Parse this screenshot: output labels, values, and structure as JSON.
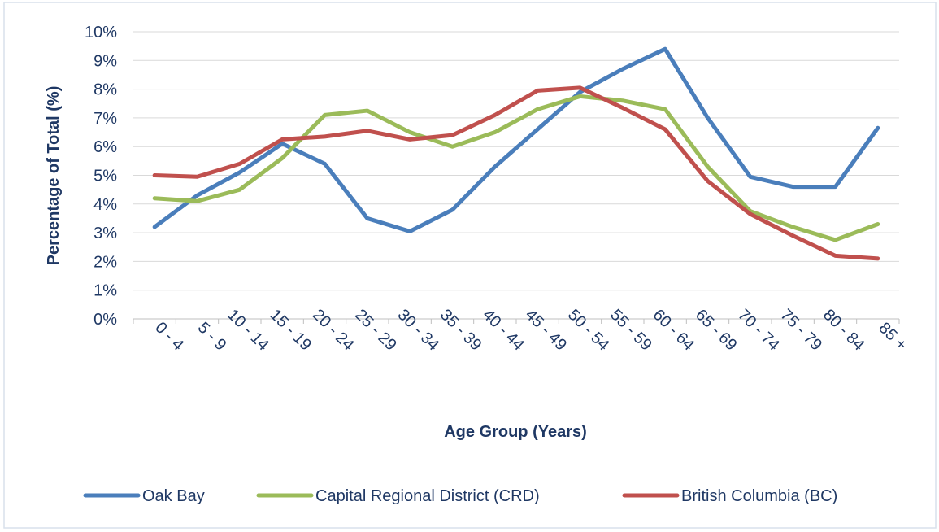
{
  "chart_data": {
    "type": "line",
    "x_label": "Age Group (Years)",
    "y_label": "Percentage of Total (%)",
    "categories": [
      "0 - 4",
      "5 - 9",
      "10 - 14",
      "15 - 19",
      "20 - 24",
      "25 - 29",
      "30 - 34",
      "35 - 39",
      "40 - 44",
      "45 - 49",
      "50 - 54",
      "55 - 59",
      "60 - 64",
      "65 - 69",
      "70 - 74",
      "75 - 79",
      "80 - 84",
      "85 +"
    ],
    "series": [
      {
        "name": "Oak Bay",
        "color": "#4a7ebb",
        "values": [
          3.2,
          4.3,
          5.1,
          6.1,
          5.4,
          3.5,
          3.05,
          3.8,
          5.3,
          6.6,
          7.9,
          8.7,
          9.4,
          7.0,
          4.95,
          4.6,
          4.6,
          6.65
        ]
      },
      {
        "name": "Capital Regional District (CRD)",
        "color": "#9bbb59",
        "values": [
          4.2,
          4.1,
          4.5,
          5.6,
          7.1,
          7.25,
          6.5,
          6.0,
          6.5,
          7.3,
          7.75,
          7.6,
          7.3,
          5.3,
          3.75,
          3.2,
          2.75,
          3.3
        ]
      },
      {
        "name": "British Columbia (BC)",
        "color": "#c0504d",
        "values": [
          5.0,
          4.95,
          5.4,
          6.25,
          6.35,
          6.55,
          6.25,
          6.4,
          7.1,
          7.95,
          8.05,
          7.35,
          6.6,
          4.8,
          3.65,
          2.9,
          2.2,
          2.1
        ]
      }
    ],
    "ylim": [
      0,
      10
    ],
    "yticks": [
      {
        "value": 0,
        "label": "0%"
      },
      {
        "value": 1,
        "label": "1%"
      },
      {
        "value": 2,
        "label": "2%"
      },
      {
        "value": 3,
        "label": "3%"
      },
      {
        "value": 4,
        "label": "4%"
      },
      {
        "value": 5,
        "label": "5%"
      },
      {
        "value": 6,
        "label": "6%"
      },
      {
        "value": 7,
        "label": "7%"
      },
      {
        "value": 8,
        "label": "8%"
      },
      {
        "value": 9,
        "label": "9%"
      },
      {
        "value": 10,
        "label": "10%"
      }
    ],
    "grid": true,
    "legend": "bottom"
  }
}
